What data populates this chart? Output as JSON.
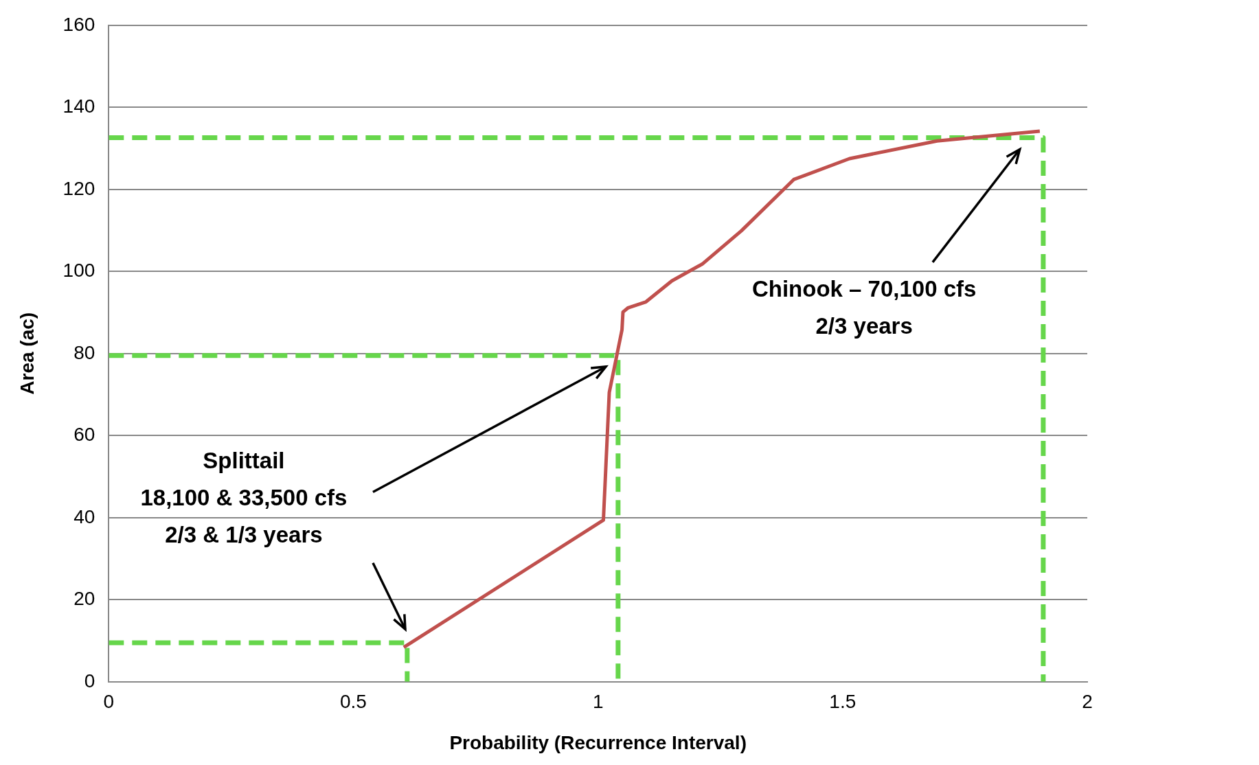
{
  "chart_data": {
    "type": "line",
    "xlabel": "Probability (Recurrence Interval)",
    "ylabel": "Area (ac)",
    "xlim": [
      0,
      2
    ],
    "xticks": [
      0,
      0.5,
      1,
      1.5,
      2
    ],
    "ylim": [
      0,
      160
    ],
    "yticks": [
      0,
      20,
      40,
      60,
      80,
      100,
      120,
      140,
      160
    ],
    "grid": "y",
    "legend": false,
    "marker": "none",
    "annotations": [
      "Splittail\n18,100 & 33,500 cfs\n2/3 & 1/3 years",
      "Chinook – 70,100 cfs\n2/3 years"
    ],
    "series": [
      {
        "color": "#c0504d",
        "line_style": "solid",
        "x": [
          0.603,
          1.011,
          1.023,
          1.038,
          1.049,
          1.051,
          1.061,
          1.098,
          1.151,
          1.213,
          1.293,
          1.4,
          1.514,
          1.693,
          1.903
        ],
        "values": [
          8.4,
          39.4,
          70.5,
          79.3,
          85.8,
          90.1,
          91.1,
          92.6,
          97.7,
          101.8,
          109.9,
          122.4,
          127.5,
          131.8,
          134.2
        ]
      },
      {
        "color": "#66d64b",
        "line_style": "dashed",
        "x": [
          0,
          0.61,
          0.61
        ],
        "values": [
          9.5,
          9.5,
          0
        ]
      },
      {
        "color": "#66d64b",
        "line_style": "dashed",
        "x": [
          0,
          1.041,
          1.041
        ],
        "values": [
          79.5,
          79.5,
          0
        ]
      },
      {
        "color": "#66d64b",
        "line_style": "dashed",
        "x": [
          0,
          1.91,
          1.91
        ],
        "values": [
          132.6,
          132.6,
          0
        ]
      }
    ]
  }
}
